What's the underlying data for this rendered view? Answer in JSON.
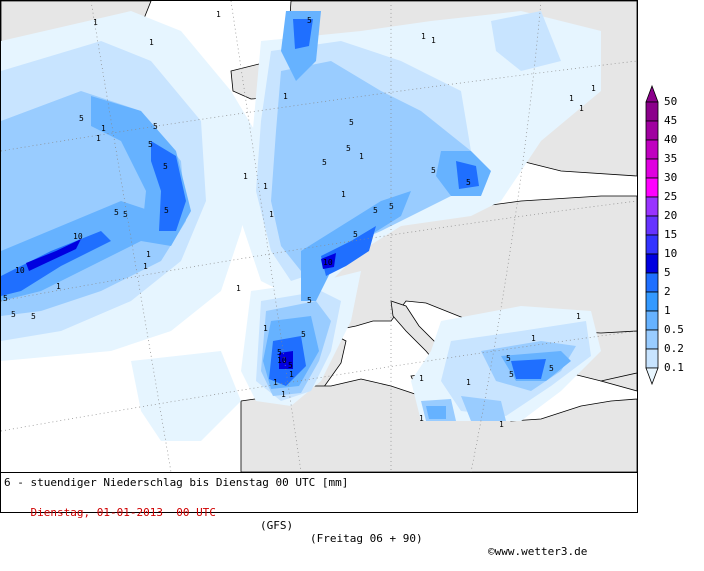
{
  "footer": {
    "line1": "6 - stuendiger Niederschlag bis Dienstag 00 UTC [mm]",
    "date": "Dienstag, 01-01-2013  00 UTC",
    "model": "(GFS)",
    "run": "(Freitag 06 + 90)",
    "credit": "©www.wetter3.de"
  },
  "legend": {
    "levels": [
      "50",
      "45",
      "40",
      "35",
      "30",
      "25",
      "20",
      "15",
      "10",
      "5",
      "2",
      "1",
      "0.5",
      "0.2",
      "0.1"
    ],
    "colors": [
      "#8b008b",
      "#a000a0",
      "#c000c0",
      "#e000e0",
      "#ff00ff",
      "#9933ff",
      "#6633ff",
      "#3333ff",
      "#0000e0",
      "#1f6fff",
      "#3399ff",
      "#66b2ff",
      "#99ccff",
      "#c8e4ff",
      "#e8f6ff"
    ]
  },
  "map": {
    "colors": {
      "land": "#e6e6e6",
      "sea": "#ffffff",
      "p01": "#e6f5ff",
      "p02": "#c8e4ff",
      "p05": "#99ccff",
      "p1": "#66b2ff",
      "p2": "#3399ff",
      "p5": "#1f6fff",
      "p10": "#0000e0"
    },
    "contour_labels": [
      "1",
      "1",
      "1",
      "5",
      "1",
      "1",
      "5",
      "5",
      "5",
      "5",
      "5",
      "10",
      "10",
      "5",
      "5",
      "1",
      "1",
      "5",
      "1",
      "1",
      "5",
      "5",
      "5",
      "5",
      "5",
      "5",
      "5",
      "10",
      "5",
      "5",
      "5",
      "5",
      "5",
      "5",
      "5",
      "5",
      "5",
      "10",
      "5",
      "1",
      "1",
      "1",
      "1",
      "1",
      "1",
      "1",
      "1",
      "1",
      "1",
      "1",
      "1",
      "1",
      "1",
      "1",
      "1",
      "1",
      "1",
      "1",
      "1",
      "1"
    ]
  }
}
